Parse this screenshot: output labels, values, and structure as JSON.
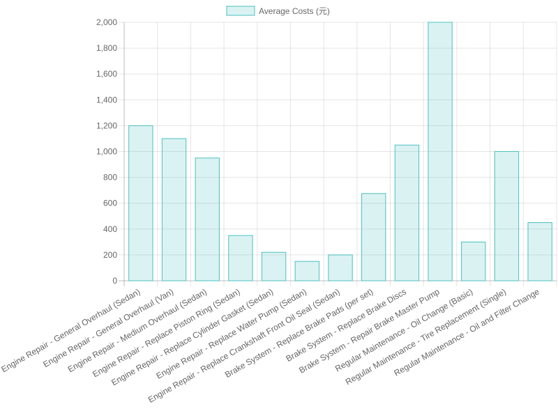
{
  "chart_data": {
    "type": "bar",
    "title": "",
    "xlabel": "",
    "ylabel": "",
    "legend": [
      {
        "label": "Average Costs (元)",
        "color": "#4bc0c0",
        "fill": "rgba(75,192,192,0.2)"
      }
    ],
    "legend_position": "top",
    "categories": [
      "Engine Repair - General Overhaul (Sedan)",
      "Engine Repair - General Overhaul (Van)",
      "Engine Repair - Medium Overhaul (Sedan)",
      "Engine Repair - Replace Piston Ring (Sedan)",
      "Engine Repair - Replace Cylinder Gasket (Sedan)",
      "Engine Repair - Replace Water Pump (Sedan)",
      "Engine Repair - Replace Crankshaft Front Oil Seal (Sedan)",
      "Brake System - Replace Brake Pads (per set)",
      "Brake System - Replace Brake Discs",
      "Brake System - Repair Brake Master Pump",
      "Regular Maintenance - Oil Change (Basic)",
      "Regular Maintenance - Tire Replacement (Single)",
      "Regular Maintenance - Oil and Filter Change"
    ],
    "series": [
      {
        "name": "Average Costs (元)",
        "values": [
          1200,
          1100,
          950,
          350,
          220,
          150,
          200,
          675,
          1050,
          2000,
          300,
          1000,
          450
        ]
      }
    ],
    "ylim": [
      0,
      2000
    ],
    "yticks": [
      "0",
      "200",
      "400",
      "600",
      "800",
      "1,000",
      "1,200",
      "1,400",
      "1,600",
      "1,800",
      "2,000"
    ],
    "grid": true
  }
}
